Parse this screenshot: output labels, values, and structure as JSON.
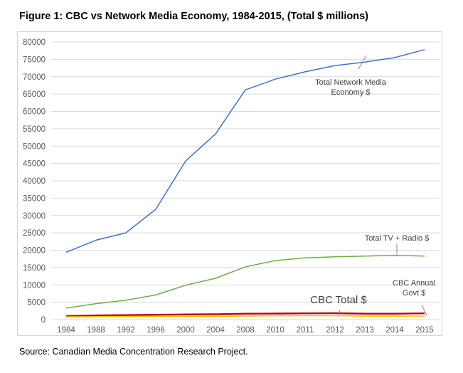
{
  "figure_title": "Figure 1: CBC vs Network Media Economy, 1984-2015, (Total $ millions)",
  "source_note": "Source: Canadian Media Concentration Research Project.",
  "colors": {
    "total_network": "#4472c4",
    "tv_radio": "#70ad47",
    "cbc_total": "#c00000",
    "cbc_govt": "#ffc000",
    "grid": "#d9d9d9",
    "tick_text": "#595959"
  },
  "chart_data": {
    "type": "line",
    "title": "",
    "xlabel": "",
    "ylabel": "",
    "grid": true,
    "ylim": [
      0,
      80000
    ],
    "yticks": [
      0,
      5000,
      10000,
      15000,
      20000,
      25000,
      30000,
      35000,
      40000,
      45000,
      50000,
      55000,
      60000,
      65000,
      70000,
      75000,
      80000
    ],
    "categories": [
      "1984",
      "1988",
      "1992",
      "1996",
      "2000",
      "2004",
      "2008",
      "2010",
      "2011",
      "2012",
      "2013",
      "2014",
      "2015"
    ],
    "series": [
      {
        "key": "total_network",
        "values": [
          19400,
          22900,
          25000,
          31800,
          45700,
          53500,
          66200,
          69300,
          71400,
          73200,
          74200,
          75500,
          77800
        ]
      },
      {
        "key": "tv_radio",
        "values": [
          3300,
          4600,
          5600,
          7100,
          9900,
          11900,
          15200,
          17000,
          17800,
          18100,
          18300,
          18500,
          18300
        ]
      },
      {
        "key": "cbc_total",
        "values": [
          1000,
          1200,
          1300,
          1400,
          1500,
          1550,
          1700,
          1750,
          1800,
          1850,
          1700,
          1700,
          1800
        ]
      },
      {
        "key": "cbc_govt",
        "values": [
          800,
          850,
          900,
          950,
          950,
          950,
          1050,
          1100,
          1150,
          1150,
          1000,
          1000,
          1000
        ]
      }
    ],
    "annotations": [
      {
        "key": "total_network",
        "lines": [
          "Total Network Media",
          "Economy $"
        ]
      },
      {
        "key": "tv_radio",
        "lines": [
          "Total TV + Radio $"
        ]
      },
      {
        "key": "cbc_total",
        "lines": [
          "CBC Total $"
        ]
      },
      {
        "key": "cbc_govt",
        "lines": [
          "CBC Annual",
          "Govt $"
        ]
      }
    ]
  }
}
